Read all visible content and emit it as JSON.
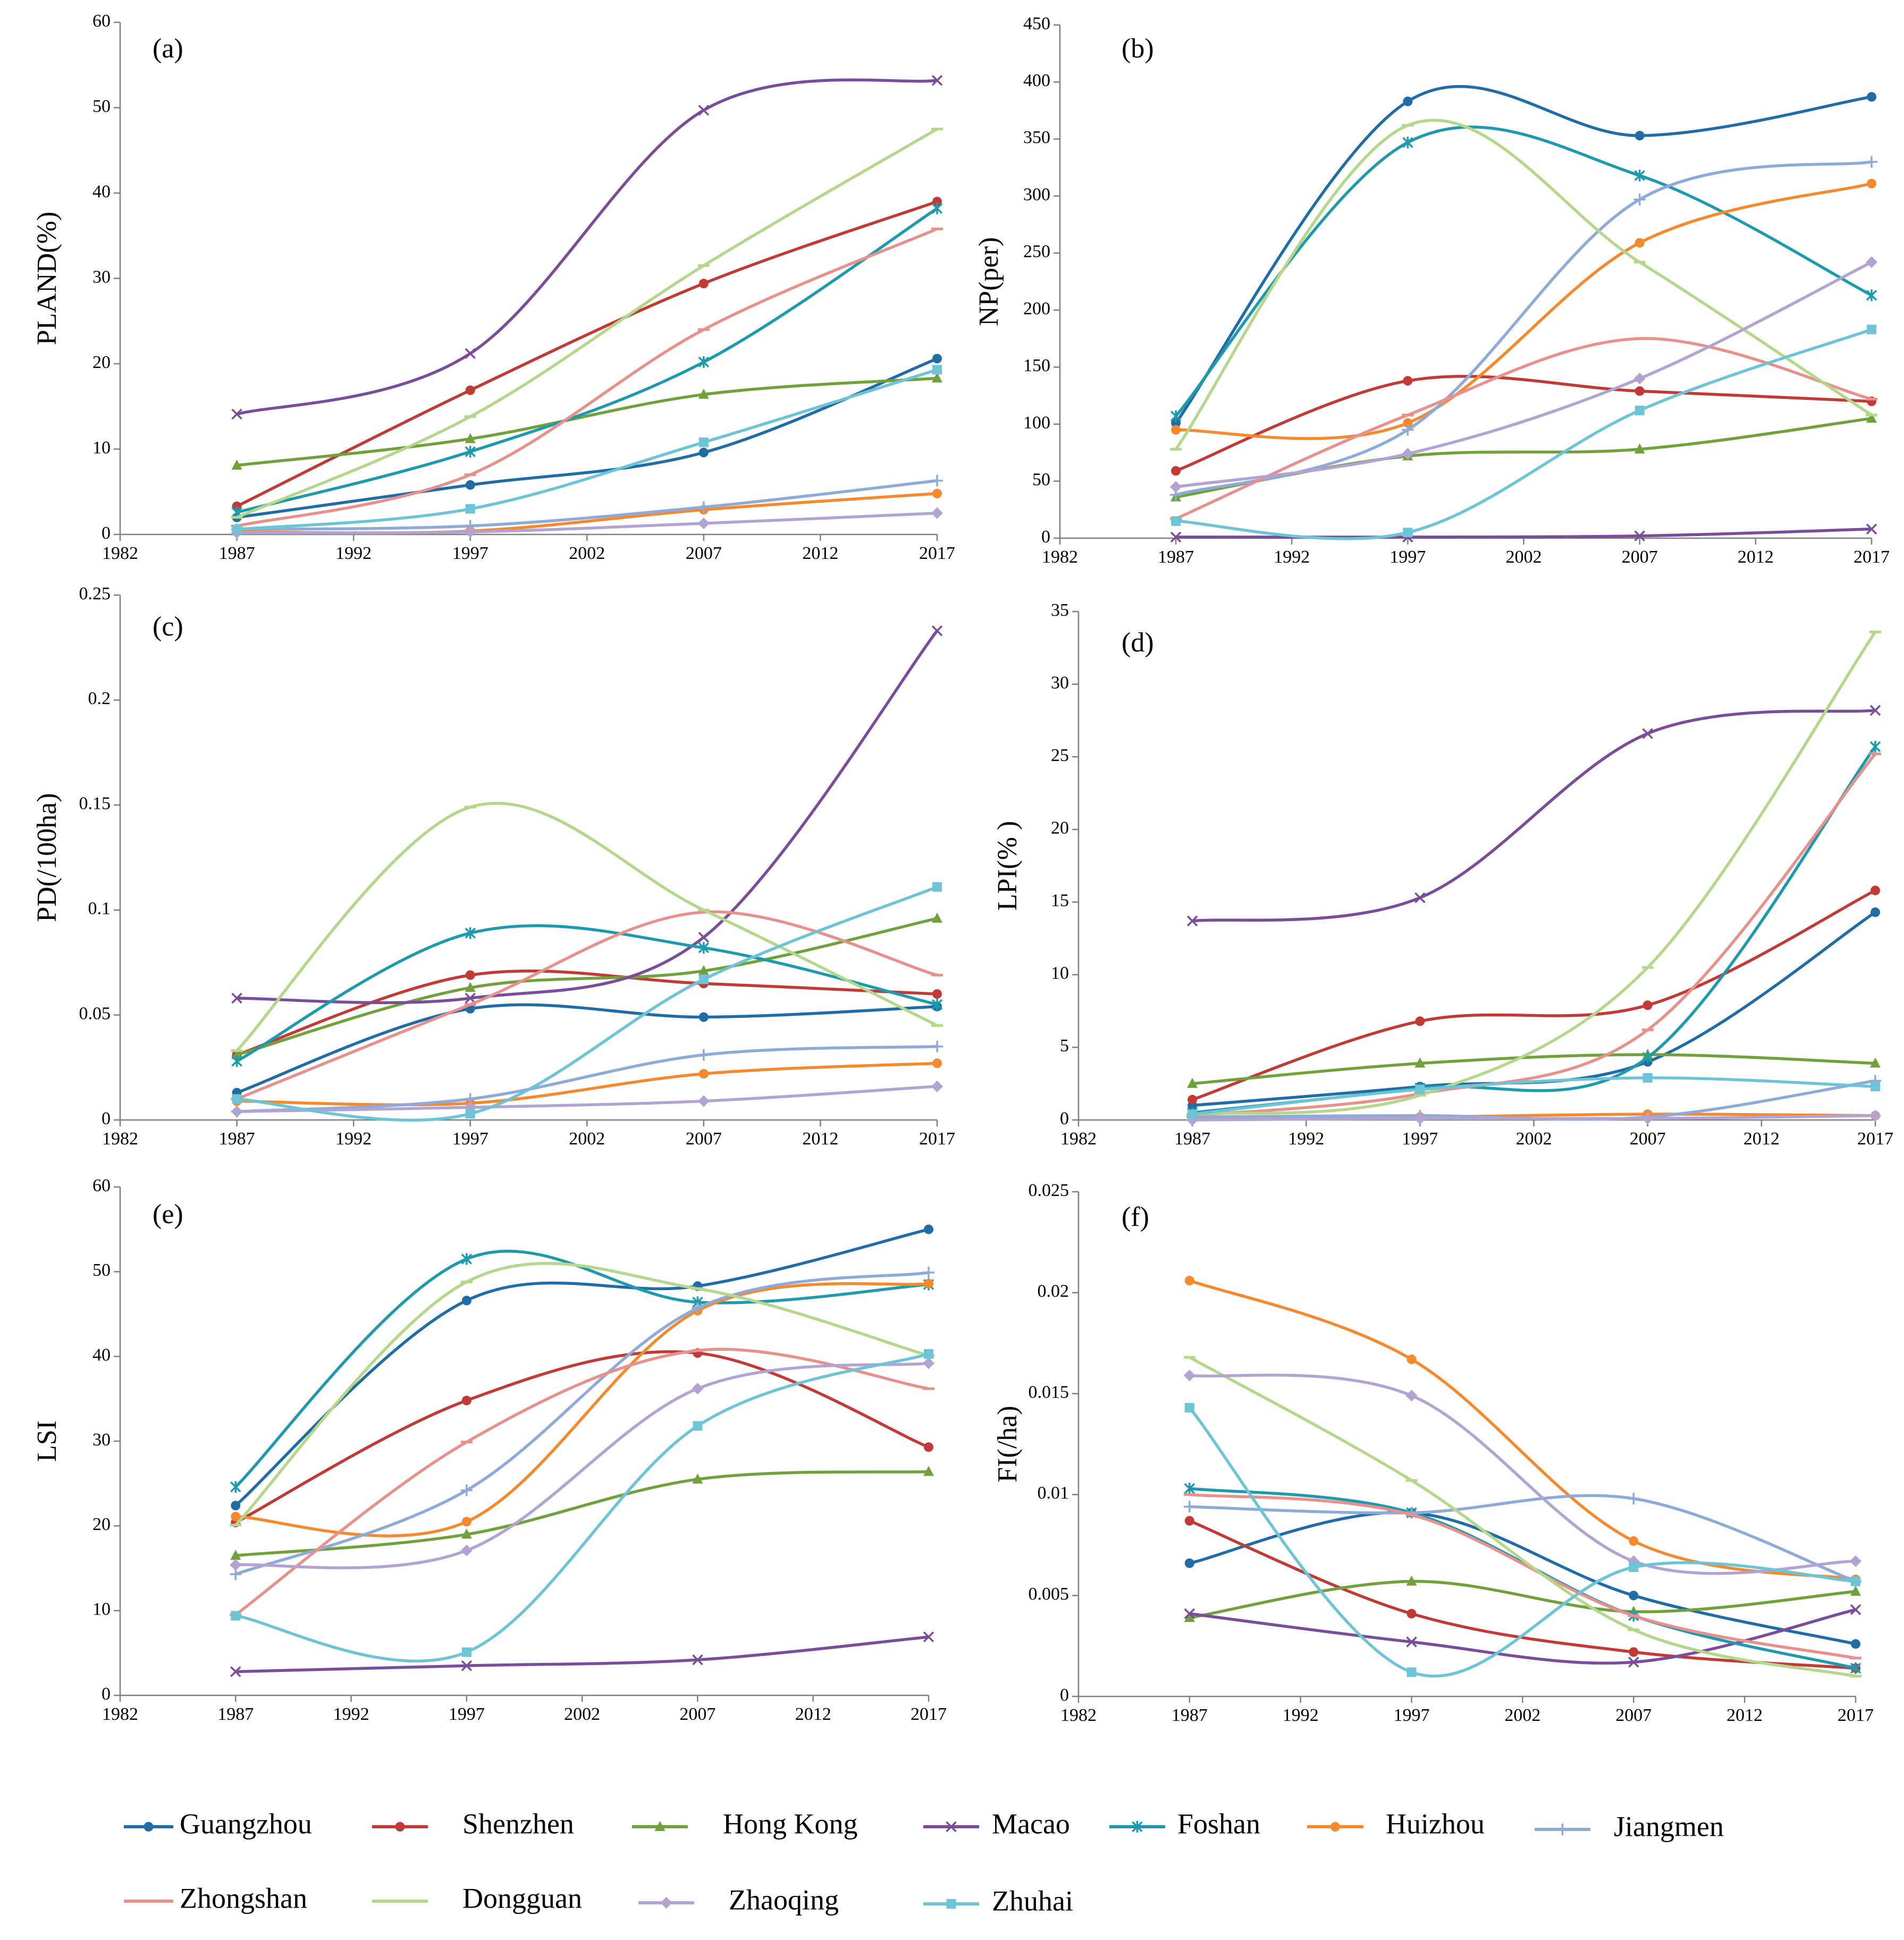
{
  "legend": {
    "items": [
      {
        "label": "Guangzhou",
        "color": "#1F6CA6",
        "marker": "circle"
      },
      {
        "label": "Shenzhen",
        "color": "#C23A36",
        "marker": "circle"
      },
      {
        "label": "Hong Kong",
        "color": "#71A13B",
        "marker": "triangle"
      },
      {
        "label": "Macao",
        "color": "#7A4D9B",
        "marker": "x"
      },
      {
        "label": "Foshan",
        "color": "#1E9AAF",
        "marker": "asterisk"
      },
      {
        "label": "Huizhou",
        "color": "#F5892C",
        "marker": "circle"
      },
      {
        "label": "Jiangmen",
        "color": "#8EAAD9",
        "marker": "plus"
      },
      {
        "label": "Zhongshan",
        "color": "#E8908C",
        "marker": "dash"
      },
      {
        "label": "Dongguan",
        "color": "#B4D78B",
        "marker": "dash"
      },
      {
        "label": "Zhaoqing",
        "color": "#B3A3D3",
        "marker": "diamond"
      },
      {
        "label": "Zhuhai",
        "color": "#6DC4D6",
        "marker": "square"
      }
    ]
  },
  "chart_data": [
    {
      "type": "line",
      "panel_label": "(a)",
      "ylabel": "PLAND(%)",
      "xlabel": "",
      "x": [
        1987,
        1997,
        2007,
        2017
      ],
      "xlim": [
        1982,
        2017
      ],
      "ylim": [
        0,
        60
      ],
      "x_ticks": [
        "1982",
        "1987",
        "1992",
        "1997",
        "2002",
        "2007",
        "2012",
        "2017"
      ],
      "y_ticks": [
        "0",
        "10",
        "20",
        "30",
        "40",
        "50",
        "60"
      ],
      "series": [
        {
          "name": "Guangzhou",
          "values": [
            2.0,
            5.8,
            9.6,
            20.6
          ]
        },
        {
          "name": "Shenzhen",
          "values": [
            3.3,
            16.9,
            29.4,
            39.0
          ]
        },
        {
          "name": "Hong Kong",
          "values": [
            8.1,
            11.2,
            16.4,
            18.3
          ]
        },
        {
          "name": "Macao",
          "values": [
            14.1,
            21.2,
            49.7,
            53.2
          ]
        },
        {
          "name": "Foshan",
          "values": [
            2.6,
            9.7,
            20.2,
            38.2
          ]
        },
        {
          "name": "Huizhou",
          "values": [
            0.3,
            0.4,
            2.9,
            4.8
          ]
        },
        {
          "name": "Jiangmen",
          "values": [
            0.6,
            1.0,
            3.2,
            6.3
          ]
        },
        {
          "name": "Zhongshan",
          "values": [
            1.0,
            7.0,
            24.0,
            35.8
          ]
        },
        {
          "name": "Dongguan",
          "values": [
            2.0,
            13.8,
            31.5,
            47.5
          ]
        },
        {
          "name": "Zhaoqing",
          "values": [
            0.2,
            0.3,
            1.3,
            2.5
          ]
        },
        {
          "name": "Zhuhai",
          "values": [
            0.6,
            3.0,
            10.8,
            19.3
          ]
        }
      ]
    },
    {
      "type": "line",
      "panel_label": "(b)",
      "ylabel": "NP(per)",
      "xlabel": "",
      "x": [
        1987,
        1997,
        2007,
        2017
      ],
      "xlim": [
        1982,
        2017
      ],
      "ylim": [
        0,
        450
      ],
      "x_ticks": [
        "1982",
        "1987",
        "1992",
        "1997",
        "2002",
        "2007",
        "2012",
        "2017"
      ],
      "y_ticks": [
        "0",
        "50",
        "100",
        "150",
        "200",
        "250",
        "300",
        "350",
        "400",
        "450"
      ],
      "series": [
        {
          "name": "Guangzhou",
          "values": [
            101,
            383,
            353,
            387
          ]
        },
        {
          "name": "Shenzhen",
          "values": [
            59,
            138,
            129,
            120
          ]
        },
        {
          "name": "Hong Kong",
          "values": [
            36,
            72,
            78,
            105
          ]
        },
        {
          "name": "Macao",
          "values": [
            1,
            1,
            2,
            8
          ]
        },
        {
          "name": "Foshan",
          "values": [
            107,
            347,
            318,
            213
          ]
        },
        {
          "name": "Huizhou",
          "values": [
            95,
            101,
            259,
            311
          ]
        },
        {
          "name": "Jiangmen",
          "values": [
            38,
            95,
            297,
            330
          ]
        },
        {
          "name": "Zhongshan",
          "values": [
            17,
            108,
            175,
            122
          ]
        },
        {
          "name": "Dongguan",
          "values": [
            78,
            362,
            242,
            108
          ]
        },
        {
          "name": "Zhaoqing",
          "values": [
            45,
            74,
            140,
            242
          ]
        },
        {
          "name": "Zhuhai",
          "values": [
            15,
            5,
            112,
            183
          ]
        }
      ]
    },
    {
      "type": "line",
      "panel_label": "(c)",
      "ylabel": "PD(/100ha)",
      "xlabel": "",
      "x": [
        1987,
        1997,
        2007,
        2017
      ],
      "xlim": [
        1982,
        2017
      ],
      "ylim": [
        0,
        0.25
      ],
      "x_ticks": [
        "1982",
        "1987",
        "1992",
        "1997",
        "2002",
        "2007",
        "2012",
        "2017"
      ],
      "y_ticks": [
        "0",
        "0.05",
        "0.1",
        "0.15",
        "0.2",
        "0.25"
      ],
      "series": [
        {
          "name": "Guangzhou",
          "values": [
            0.013,
            0.053,
            0.049,
            0.054
          ]
        },
        {
          "name": "Shenzhen",
          "values": [
            0.031,
            0.069,
            0.065,
            0.06
          ]
        },
        {
          "name": "Hong Kong",
          "values": [
            0.031,
            0.063,
            0.071,
            0.096
          ]
        },
        {
          "name": "Macao",
          "values": [
            0.058,
            0.058,
            0.087,
            0.233
          ]
        },
        {
          "name": "Foshan",
          "values": [
            0.028,
            0.089,
            0.082,
            0.055
          ]
        },
        {
          "name": "Huizhou",
          "values": [
            0.009,
            0.008,
            0.022,
            0.027
          ]
        },
        {
          "name": "Jiangmen",
          "values": [
            0.004,
            0.01,
            0.031,
            0.035
          ]
        },
        {
          "name": "Zhongshan",
          "values": [
            0.01,
            0.055,
            0.099,
            0.069
          ]
        },
        {
          "name": "Dongguan",
          "values": [
            0.033,
            0.149,
            0.1,
            0.045
          ]
        },
        {
          "name": "Zhaoqing",
          "values": [
            0.004,
            0.006,
            0.009,
            0.016
          ]
        },
        {
          "name": "Zhuhai",
          "values": [
            0.01,
            0.003,
            0.067,
            0.111
          ]
        }
      ]
    },
    {
      "type": "line",
      "panel_label": "(d)",
      "ylabel": "LPI(% )",
      "xlabel": "",
      "x": [
        1987,
        1997,
        2007,
        2017
      ],
      "xlim": [
        1982,
        2017
      ],
      "ylim": [
        0,
        35
      ],
      "x_ticks": [
        "1982",
        "1987",
        "1992",
        "1997",
        "2002",
        "2007",
        "2012",
        "2017"
      ],
      "y_ticks": [
        "0",
        "5",
        "10",
        "15",
        "20",
        "25",
        "30",
        "35"
      ],
      "series": [
        {
          "name": "Guangzhou",
          "values": [
            1.0,
            2.3,
            4.0,
            14.3
          ]
        },
        {
          "name": "Shenzhen",
          "values": [
            1.4,
            6.8,
            7.9,
            15.8
          ]
        },
        {
          "name": "Hong Kong",
          "values": [
            2.5,
            3.9,
            4.5,
            3.9
          ]
        },
        {
          "name": "Macao",
          "values": [
            13.7,
            15.3,
            26.6,
            28.2
          ]
        },
        {
          "name": "Foshan",
          "values": [
            0.5,
            2.2,
            4.3,
            25.7
          ]
        },
        {
          "name": "Huizhou",
          "values": [
            0.1,
            0.2,
            0.4,
            0.3
          ]
        },
        {
          "name": "Jiangmen",
          "values": [
            0.2,
            0.3,
            0.2,
            2.7
          ]
        },
        {
          "name": "Zhongshan",
          "values": [
            0.3,
            1.8,
            6.2,
            25.2
          ]
        },
        {
          "name": "Dongguan",
          "values": [
            0.4,
            1.7,
            10.5,
            33.6
          ]
        },
        {
          "name": "Zhaoqing",
          "values": [
            0.0,
            0.1,
            0.1,
            0.3
          ]
        },
        {
          "name": "Zhuhai",
          "values": [
            0.4,
            2.1,
            2.9,
            2.3
          ]
        }
      ]
    },
    {
      "type": "line",
      "panel_label": "(e)",
      "ylabel": "LSI",
      "xlabel": "",
      "x": [
        1987,
        1997,
        2007,
        2017
      ],
      "xlim": [
        1982,
        2017
      ],
      "ylim": [
        0,
        60
      ],
      "x_ticks": [
        "1982",
        "1987",
        "1992",
        "1997",
        "2002",
        "2007",
        "2012",
        "2017"
      ],
      "y_ticks": [
        "0",
        "10",
        "20",
        "30",
        "40",
        "50",
        "60"
      ],
      "series": [
        {
          "name": "Guangzhou",
          "values": [
            22.4,
            46.6,
            48.3,
            55.0
          ]
        },
        {
          "name": "Shenzhen",
          "values": [
            20.4,
            34.8,
            40.4,
            29.3
          ]
        },
        {
          "name": "Hong Kong",
          "values": [
            16.5,
            19.0,
            25.5,
            26.4
          ]
        },
        {
          "name": "Macao",
          "values": [
            2.8,
            3.5,
            4.2,
            6.9
          ]
        },
        {
          "name": "Foshan",
          "values": [
            24.6,
            51.5,
            46.4,
            48.5
          ]
        },
        {
          "name": "Huizhou",
          "values": [
            21.1,
            20.5,
            45.4,
            48.6
          ]
        },
        {
          "name": "Jiangmen",
          "values": [
            14.3,
            24.2,
            45.7,
            49.9
          ]
        },
        {
          "name": "Zhongshan",
          "values": [
            9.5,
            29.9,
            40.7,
            36.2
          ]
        },
        {
          "name": "Dongguan",
          "values": [
            20.1,
            48.8,
            48.0,
            40.1
          ]
        },
        {
          "name": "Zhaoqing",
          "values": [
            15.4,
            17.1,
            36.2,
            39.2
          ]
        },
        {
          "name": "Zhuhai",
          "values": [
            9.4,
            5.1,
            31.8,
            40.3
          ]
        }
      ]
    },
    {
      "type": "line",
      "panel_label": "(f)",
      "ylabel": "FI(/ha)",
      "xlabel": "",
      "x": [
        1987,
        1997,
        2007,
        2017
      ],
      "xlim": [
        1982,
        2017
      ],
      "ylim": [
        0,
        0.025
      ],
      "x_ticks": [
        "1982",
        "1987",
        "1992",
        "1997",
        "2002",
        "2007",
        "2012",
        "2017"
      ],
      "y_ticks": [
        "0",
        "0.005",
        "0.01",
        "0.015",
        "0.02",
        "0.025"
      ],
      "series": [
        {
          "name": "Guangzhou",
          "values": [
            0.0066,
            0.0091,
            0.005,
            0.0026
          ]
        },
        {
          "name": "Shenzhen",
          "values": [
            0.0087,
            0.0041,
            0.0022,
            0.0014
          ]
        },
        {
          "name": "Hong Kong",
          "values": [
            0.0039,
            0.0057,
            0.0042,
            0.0052
          ]
        },
        {
          "name": "Macao",
          "values": [
            0.0041,
            0.0027,
            0.0017,
            0.0043
          ]
        },
        {
          "name": "Foshan",
          "values": [
            0.0103,
            0.0091,
            0.004,
            0.0014
          ]
        },
        {
          "name": "Huizhou",
          "values": [
            0.0206,
            0.0167,
            0.0077,
            0.0058
          ]
        },
        {
          "name": "Jiangmen",
          "values": [
            0.0094,
            0.0091,
            0.0098,
            0.0057
          ]
        },
        {
          "name": "Zhongshan",
          "values": [
            0.01,
            0.009,
            0.004,
            0.0019
          ]
        },
        {
          "name": "Dongguan",
          "values": [
            0.0168,
            0.0107,
            0.0033,
            0.001
          ]
        },
        {
          "name": "Zhaoqing",
          "values": [
            0.0159,
            0.0149,
            0.0067,
            0.0067
          ]
        },
        {
          "name": "Zhuhai",
          "values": [
            0.0143,
            0.0012,
            0.0064,
            0.0057
          ]
        }
      ]
    }
  ]
}
